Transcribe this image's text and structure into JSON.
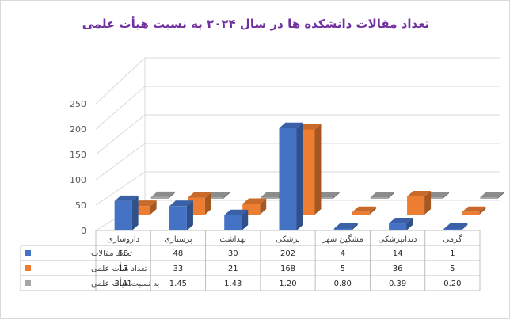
{
  "chart_data": {
    "type": "bar",
    "title": "تعداد مقالات دانشکده ها در سال ۲۰۲۴ به نسبت هیأت علمی",
    "categories": [
      "داروسازی",
      "پرستاری",
      "بهداشت",
      "پزشکی",
      "مشگین شهر",
      "دندانپزشکی",
      "گرمی"
    ],
    "series": [
      {
        "name": "تعداد مقالات",
        "color": "#4472c4",
        "values": [
          58,
          48,
          30,
          202,
          4,
          14,
          1
        ],
        "labels": [
          "58",
          "48",
          "30",
          "202",
          "4",
          "14",
          "1"
        ]
      },
      {
        "name": "تعداد هیأت علمی",
        "color": "#ed7d31",
        "values": [
          17,
          33,
          21,
          168,
          5,
          36,
          5
        ],
        "labels": [
          "17",
          "33",
          "21",
          "168",
          "5",
          "36",
          "5"
        ]
      },
      {
        "name": "به نسبت هیأت علمی",
        "color": "#a5a5a5",
        "values": [
          3.41,
          1.45,
          1.43,
          1.2,
          0.8,
          0.39,
          0.2
        ],
        "labels": [
          "3.41",
          "1.45",
          "1.43",
          "1.20",
          "0.80",
          "0.39",
          "0.20"
        ]
      }
    ],
    "yticks": [
      "0",
      "50",
      "100",
      "150",
      "200",
      "250"
    ],
    "ylim": [
      0,
      250
    ],
    "grid": true,
    "legend": "data-table"
  }
}
